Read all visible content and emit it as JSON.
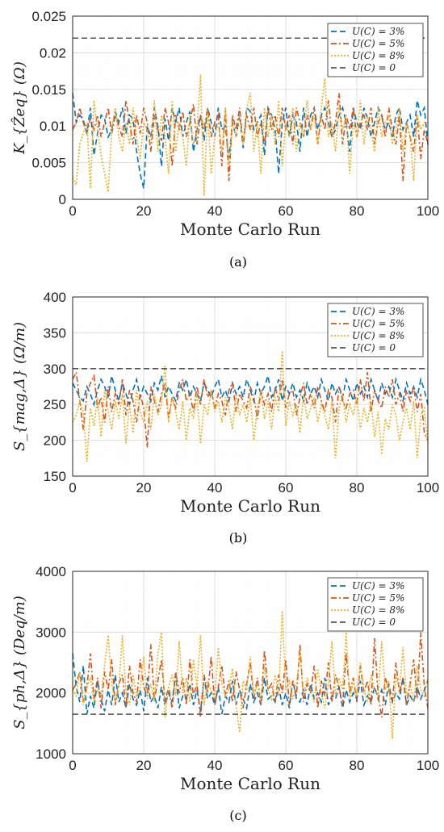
{
  "colors": {
    "s3": "#0072BD",
    "s5": "#D95319",
    "s8": "#EDB120",
    "s0": "#555555"
  },
  "chart_data": [
    {
      "type": "line",
      "panel_label": "(a)",
      "ylabel": "K_{Ẑeq} (Ω)",
      "xlabel": "Monte Carlo Run",
      "xlim": [
        0,
        100
      ],
      "ylim": [
        0,
        0.025
      ],
      "xticks": [
        "0",
        "20",
        "40",
        "60",
        "80",
        "100"
      ],
      "yticks": [
        "0",
        "0.005",
        "0.01",
        "0.015",
        "0.02",
        "0.025"
      ],
      "grid": true,
      "legend_position": "top-right",
      "reference": {
        "name": "U(C) = 0",
        "value": 0.022
      },
      "series": [
        {
          "name": "U(C) = 3%",
          "values": [
            0.0145,
            0.0105,
            0.0115,
            0.0108,
            0.009,
            0.0125,
            0.006,
            0.009,
            0.0115,
            0.011,
            0.0085,
            0.0095,
            0.012,
            0.0105,
            0.0125,
            0.009,
            0.0115,
            0.011,
            0.0065,
            0.0035,
            0.0015,
            0.01,
            0.0085,
            0.0125,
            0.01,
            0.0045,
            0.011,
            0.008,
            0.0125,
            0.0105,
            0.0125,
            0.0085,
            0.0105,
            0.012,
            0.0065,
            0.0095,
            0.0115,
            0.008,
            0.0125,
            0.0105,
            0.0085,
            0.0125,
            0.0095,
            0.01,
            0.0055,
            0.0105,
            0.0085,
            0.0115,
            0.007,
            0.0125,
            0.012,
            0.0095,
            0.0105,
            0.0115,
            0.006,
            0.0125,
            0.0115,
            0.0095,
            0.0035,
            0.0105,
            0.0125,
            0.0085,
            0.0115,
            0.0105,
            0.0065,
            0.0125,
            0.0085,
            0.0115,
            0.0125,
            0.0095,
            0.0115,
            0.0125,
            0.0105,
            0.0085,
            0.0095,
            0.0115,
            0.0125,
            0.0105,
            0.0065,
            0.0125,
            0.0105,
            0.0095,
            0.0125,
            0.011,
            0.0085,
            0.0105,
            0.0125,
            0.0115,
            0.0095,
            0.0105,
            0.0085,
            0.0115,
            0.0125,
            0.0095,
            0.0105,
            0.0115,
            0.0085,
            0.0135,
            0.0115,
            0.0125,
            0.0075
          ]
        },
        {
          "name": "U(C) = 5%",
          "values": [
            0.0095,
            0.0105,
            0.0125,
            0.0105,
            0.009,
            0.011,
            0.0095,
            0.0115,
            0.0085,
            0.0105,
            0.0125,
            0.009,
            0.0115,
            0.01,
            0.0085,
            0.0135,
            0.0105,
            0.0075,
            0.0115,
            0.009,
            0.0125,
            0.0105,
            0.0065,
            0.0115,
            0.0095,
            0.008,
            0.0125,
            0.0105,
            0.0045,
            0.0115,
            0.0095,
            0.012,
            0.0085,
            0.0105,
            0.013,
            0.0075,
            0.0115,
            0.0095,
            0.0125,
            0.0085,
            0.0105,
            0.0115,
            0.0045,
            0.0125,
            0.0025,
            0.0115,
            0.0095,
            0.0125,
            0.0075,
            0.0115,
            0.0095,
            0.0125,
            0.0085,
            0.0105,
            0.0075,
            0.0125,
            0.0095,
            0.0115,
            0.0085,
            0.0125,
            0.0095,
            0.0115,
            0.0075,
            0.0125,
            0.0105,
            0.0085,
            0.0115,
            0.0095,
            0.0125,
            0.0075,
            0.0115,
            0.0095,
            0.0135,
            0.0085,
            0.0105,
            0.0145,
            0.0075,
            0.0115,
            0.0095,
            0.0125,
            0.0085,
            0.0105,
            0.0115,
            0.0095,
            0.0125,
            0.0075,
            0.0105,
            0.0115,
            0.0085,
            0.0125,
            0.0095,
            0.0075,
            0.0115,
            0.0025,
            0.0105,
            0.0085,
            0.0065,
            0.0115,
            0.0055,
            0.0095,
            0.0075
          ]
        },
        {
          "name": "U(C) = 8%",
          "values": [
            0.003,
            0.002,
            0.0075,
            0.009,
            0.0105,
            0.0015,
            0.0135,
            0.0095,
            0.006,
            0.0035,
            0.001,
            0.0095,
            0.0125,
            0.0085,
            0.0065,
            0.0105,
            0.0075,
            0.0125,
            0.0085,
            0.0055,
            0.0105,
            0.0095,
            0.0075,
            0.0135,
            0.0065,
            0.0115,
            0.0085,
            0.0035,
            0.0135,
            0.0065,
            0.0105,
            0.0085,
            0.0045,
            0.0115,
            0.0075,
            0.0095,
            0.017,
            0.0005,
            0.0125,
            0.0035,
            0.0085,
            0.0105,
            0.0065,
            0.0125,
            0.0045,
            0.0105,
            0.0085,
            0.0115,
            0.0075,
            0.0125,
            0.0145,
            0.0065,
            0.0105,
            0.0035,
            0.0125,
            0.0085,
            0.0115,
            0.0075,
            0.0135,
            0.0045,
            0.0105,
            0.0085,
            0.0125,
            0.0065,
            0.0105,
            0.0085,
            0.0135,
            0.0095,
            0.0115,
            0.0075,
            0.0125,
            0.0165,
            0.0085,
            0.0105,
            0.0065,
            0.0125,
            0.0095,
            0.0115,
            0.0035,
            0.0105,
            0.0085,
            0.0135,
            0.0075,
            0.0115,
            0.0095,
            0.0065,
            0.0125,
            0.0085,
            0.0105,
            0.0115,
            0.0075,
            0.0095,
            0.0125,
            0.0065,
            0.0105,
            0.0085,
            0.0025,
            0.0115,
            0.0095,
            0.0105,
            0.0105
          ]
        }
      ]
    },
    {
      "type": "line",
      "panel_label": "(b)",
      "ylabel": "S_{mag,Δ} (Ω/m)",
      "xlabel": "Monte Carlo Run",
      "xlim": [
        0,
        100
      ],
      "ylim": [
        150,
        400
      ],
      "xticks": [
        "0",
        "20",
        "40",
        "60",
        "80",
        "100"
      ],
      "yticks": [
        "150",
        "200",
        "250",
        "300",
        "350",
        "400"
      ],
      "grid": true,
      "legend_position": "top-right",
      "reference": {
        "name": "U(C) = 0",
        "value": 300
      },
      "series": [
        {
          "name": "U(C) = 3%",
          "values": [
            280,
            270,
            260,
            255,
            275,
            265,
            250,
            270,
            285,
            275,
            260,
            290,
            270,
            255,
            280,
            265,
            250,
            270,
            285,
            260,
            275,
            265,
            255,
            280,
            270,
            290,
            260,
            275,
            265,
            255,
            280,
            270,
            285,
            260,
            275,
            265,
            255,
            280,
            270,
            260,
            275,
            285,
            260,
            270,
            255,
            280,
            265,
            275,
            260,
            285,
            270,
            255,
            280,
            265,
            275,
            290,
            260,
            270,
            285,
            255,
            275,
            265,
            280,
            260,
            270,
            255,
            280,
            265,
            275,
            260,
            285,
            270,
            255,
            280,
            265,
            275,
            260,
            285,
            270,
            255,
            280,
            265,
            275,
            260,
            285,
            270,
            255,
            280,
            265,
            275,
            260,
            285,
            270,
            255,
            280,
            265,
            275,
            260,
            285,
            270,
            250
          ]
        },
        {
          "name": "U(C) = 5%",
          "values": [
            285,
            295,
            255,
            215,
            265,
            280,
            290,
            245,
            260,
            225,
            275,
            240,
            265,
            250,
            285,
            235,
            270,
            255,
            225,
            265,
            245,
            190,
            275,
            255,
            240,
            265,
            280,
            230,
            260,
            245,
            270,
            285,
            255,
            265,
            240,
            275,
            250,
            285,
            260,
            270,
            245,
            265,
            255,
            235,
            270,
            280,
            240,
            265,
            255,
            245,
            275,
            260,
            230,
            270,
            250,
            265,
            240,
            275,
            255,
            285,
            245,
            265,
            270,
            235,
            260,
            280,
            250,
            265,
            245,
            275,
            255,
            240,
            270,
            260,
            225,
            275,
            255,
            245,
            265,
            270,
            250,
            285,
            255,
            295,
            240,
            270,
            255,
            245,
            275,
            260,
            285,
            250,
            265,
            240,
            270,
            255,
            275,
            240,
            265,
            210,
            200
          ]
        },
        {
          "name": "U(C) = 8%",
          "values": [
            225,
            235,
            255,
            240,
            170,
            245,
            220,
            260,
            205,
            270,
            240,
            215,
            255,
            230,
            265,
            195,
            250,
            210,
            270,
            240,
            225,
            255,
            215,
            265,
            235,
            250,
            305,
            225,
            260,
            240,
            215,
            255,
            200,
            245,
            230,
            265,
            195,
            250,
            235,
            270,
            240,
            255,
            225,
            260,
            245,
            215,
            265,
            235,
            250,
            225,
            260,
            200,
            245,
            270,
            230,
            255,
            215,
            260,
            240,
            325,
            220,
            255,
            235,
            250,
            210,
            265,
            230,
            245,
            260,
            225,
            250,
            235,
            215,
            255,
            175,
            245,
            265,
            225,
            250,
            235,
            260,
            215,
            245,
            225,
            255,
            205,
            240,
            180,
            230,
            215,
            250,
            235,
            200,
            225,
            245,
            215,
            255,
            175,
            235,
            245,
            195
          ]
        }
      ]
    },
    {
      "type": "line",
      "panel_label": "(c)",
      "ylabel": "S_{ph,Δ} (Deq/m)",
      "xlabel": "Monte Carlo Run",
      "xlim": [
        0,
        100
      ],
      "ylim": [
        1000,
        4000
      ],
      "xticks": [
        "0",
        "20",
        "40",
        "60",
        "80",
        "100"
      ],
      "yticks": [
        "1000",
        "2000",
        "3000",
        "4000"
      ],
      "grid": true,
      "legend_position": "top-right",
      "reference": {
        "name": "U(C) = 0",
        "value": 1650
      },
      "series": [
        {
          "name": "U(C) = 3%",
          "values": [
            2650,
            2100,
            1850,
            2450,
            1650,
            1950,
            1750,
            2200,
            1900,
            1700,
            2050,
            1800,
            2300,
            1850,
            2000,
            1750,
            2150,
            1900,
            1800,
            2050,
            1700,
            2250,
            1850,
            1950,
            1750,
            2100,
            1800,
            2000,
            1850,
            2300,
            1750,
            1950,
            1900,
            2150,
            1800,
            2050,
            1700,
            2250,
            1900,
            2000,
            1800,
            2100,
            1650,
            1950,
            1850,
            2200,
            1800,
            2050,
            1900,
            1750,
            2150,
            1850,
            2000,
            1800,
            2250,
            1900,
            1950,
            1850,
            2100,
            1800,
            2000,
            1750,
            2200,
            1900,
            1850,
            2050,
            1800,
            2150,
            1900,
            2000,
            1850,
            2250,
            1800,
            1950,
            1900,
            2100,
            1750,
            2050,
            1850,
            2000,
            1900,
            2200,
            1800,
            1950,
            1850,
            2100,
            1900,
            2050,
            1800,
            2150,
            1850,
            2000,
            1900,
            2250,
            1800,
            1950,
            1850,
            2100,
            1900,
            2050,
            2200
          ]
        },
        {
          "name": "U(C) = 5%",
          "values": [
            2050,
            2150,
            2350,
            1850,
            2100,
            2650,
            1900,
            2250,
            1750,
            2350,
            2050,
            2550,
            1800,
            2150,
            2300,
            1750,
            2450,
            2000,
            1850,
            2550,
            2100,
            1950,
            2800,
            1900,
            2200,
            2550,
            1850,
            2100,
            1750,
            2350,
            2000,
            2250,
            1800,
            2550,
            1950,
            2150,
            1600,
            2300,
            2000,
            2600,
            1800,
            2100,
            2450,
            1950,
            2200,
            1850,
            2350,
            2050,
            1750,
            2150,
            2500,
            1900,
            2250,
            1800,
            2700,
            2050,
            2150,
            1850,
            2300,
            2000,
            2550,
            1800,
            2200,
            1950,
            2800,
            1850,
            2150,
            2000,
            2450,
            1750,
            2200,
            1950,
            2500,
            1850,
            2300,
            2100,
            1800,
            2650,
            2000,
            2250,
            1850,
            2450,
            2000,
            2200,
            1800,
            2900,
            1950,
            1600,
            2250,
            2050,
            1850,
            2500,
            2000,
            2250,
            1800,
            2150,
            2550,
            1900,
            3000,
            2100,
            1750
          ]
        },
        {
          "name": "U(C) = 8%",
          "values": [
            2050,
            1950,
            2350,
            1800,
            2100,
            2250,
            1850,
            2050,
            1950,
            2450,
            2950,
            2150,
            1850,
            2100,
            2950,
            2000,
            1800,
            2300,
            1950,
            2050,
            2600,
            1900,
            2150,
            1850,
            2650,
            3000,
            1600,
            2100,
            2300,
            1950,
            2850,
            2000,
            2250,
            1850,
            2550,
            2100,
            2950,
            1800,
            2200,
            2050,
            1900,
            2750,
            2150,
            1950,
            2050,
            2400,
            1800,
            1350,
            2200,
            2050,
            2600,
            1950,
            2150,
            1850,
            2450,
            2050,
            1900,
            2300,
            1950,
            3350,
            2050,
            2200,
            1900,
            2150,
            2650,
            1950,
            2250,
            2050,
            1850,
            2400,
            2000,
            1750,
            2150,
            2850,
            1950,
            2250,
            2050,
            3000,
            1900,
            2200,
            1950,
            2500,
            2050,
            1850,
            2300,
            2050,
            1950,
            2850,
            2050,
            2200,
            1250,
            2300,
            2050,
            2750,
            1950,
            2150,
            1850,
            2450,
            2050,
            1950,
            2250
          ]
        }
      ]
    }
  ]
}
